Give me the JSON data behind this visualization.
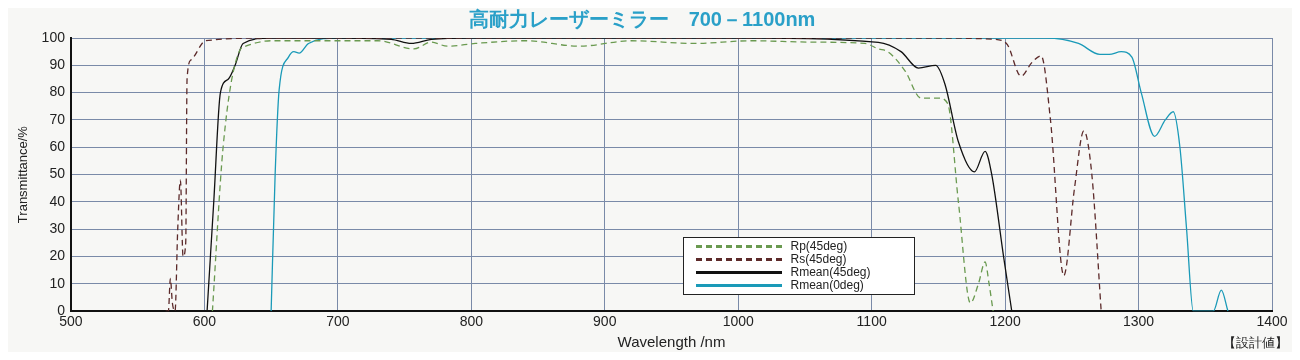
{
  "chart_data": {
    "type": "line",
    "title": "高耐力レーザーミラー　700－1100nm",
    "xlabel": "Wavelength /nm",
    "ylabel": "Transmittance/%",
    "xlim": [
      500,
      1400
    ],
    "xticks": [
      500,
      600,
      700,
      800,
      900,
      1000,
      1100,
      1200,
      1300,
      1400
    ],
    "ylim": [
      0,
      100
    ],
    "yticks": [
      0,
      10,
      20,
      30,
      40,
      50,
      60,
      70,
      80,
      90,
      100
    ],
    "grid": true,
    "legend": "bottom",
    "marker": "none",
    "annotations": [
      "【設計値】"
    ],
    "series": [
      {
        "name": "Rp(45deg)",
        "color": "#6a9a50",
        "line_style": "dashed",
        "x": [
          606,
          614,
          626,
          631,
          650,
          700,
          730,
          757,
          770,
          782,
          803,
          840,
          881,
          920,
          967,
          1010,
          1053,
          1095,
          1105,
          1112,
          1125,
          1137,
          1150,
          1157,
          1165,
          1174,
          1180,
          1185,
          1188,
          1191
        ],
        "values": [
          0,
          60,
          95,
          97,
          99,
          99,
          99,
          96,
          98.5,
          97,
          98,
          99,
          97,
          99,
          98,
          99,
          98.5,
          98,
          96,
          95,
          88,
          78,
          78,
          76,
          40,
          3,
          10,
          18,
          10,
          0
        ]
      },
      {
        "name": "Rs(45deg)",
        "color": "#5c2a2a",
        "line_style": "dashed",
        "x": [
          571,
          573,
          574.5,
          576,
          578,
          580,
          582,
          584,
          586,
          587,
          590,
          601,
          650,
          800,
          1000,
          1150,
          1190,
          1201,
          1212,
          1220,
          1227,
          1234,
          1244,
          1252,
          1259,
          1265,
          1272
        ],
        "values": [
          0,
          0,
          12,
          3,
          0,
          30,
          48,
          20,
          25,
          85,
          92,
          99,
          100,
          100,
          100,
          100,
          99.6,
          98,
          86,
          91,
          93.5,
          70,
          13,
          45,
          66,
          50,
          0
        ]
      },
      {
        "name": "Rmean(45deg)",
        "color": "#111111",
        "line_style": "solid",
        "x": [
          602,
          607,
          612,
          618,
          623,
          629,
          650,
          700,
          740,
          755,
          770,
          800,
          900,
          1000,
          1105,
          1122,
          1135,
          1148,
          1155,
          1165,
          1177,
          1185,
          1190,
          1199,
          1205
        ],
        "values": [
          0,
          40,
          80,
          85,
          90,
          98,
          100,
          100,
          99.5,
          98,
          99.5,
          100,
          100,
          100,
          98.4,
          95,
          89,
          90,
          83,
          62,
          51,
          58.5,
          50,
          19.5,
          0
        ]
      },
      {
        "name": "Rmean(0deg)",
        "color": "#1a9ab8",
        "line_style": "solid",
        "x": [
          650,
          653,
          656,
          663,
          667,
          671,
          678,
          700,
          800,
          1000,
          1200,
          1231,
          1255,
          1271,
          1278,
          1287,
          1295,
          1302,
          1312,
          1320,
          1326,
          1331,
          1336,
          1341,
          1356,
          1362,
          1367
        ],
        "values": [
          0,
          50,
          81,
          93,
          95,
          94.5,
          98,
          100,
          100,
          100,
          100,
          100,
          98,
          94,
          94,
          95,
          93,
          80,
          64,
          70,
          73,
          60,
          30,
          0,
          0,
          7.7,
          0
        ]
      }
    ]
  }
}
